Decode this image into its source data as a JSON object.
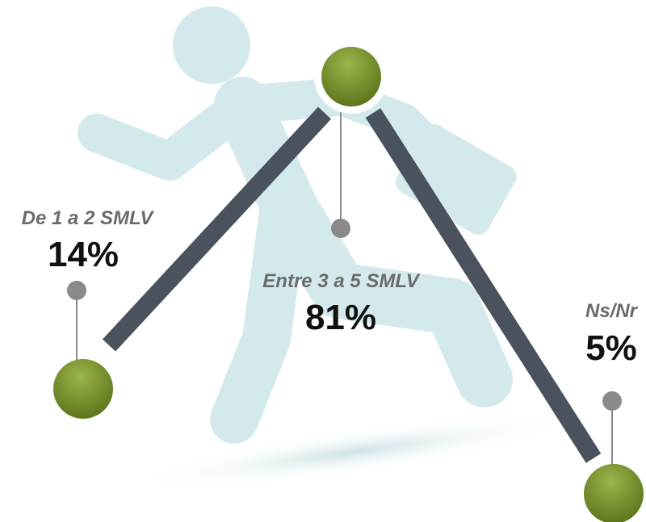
{
  "items": [
    {
      "label": "De 1 a 2 SMLV",
      "value": "14%"
    },
    {
      "label": "Entre 3 a 5 SMLV",
      "value": "81%"
    },
    {
      "label": "Ns/Nr",
      "value": "5%"
    }
  ]
}
